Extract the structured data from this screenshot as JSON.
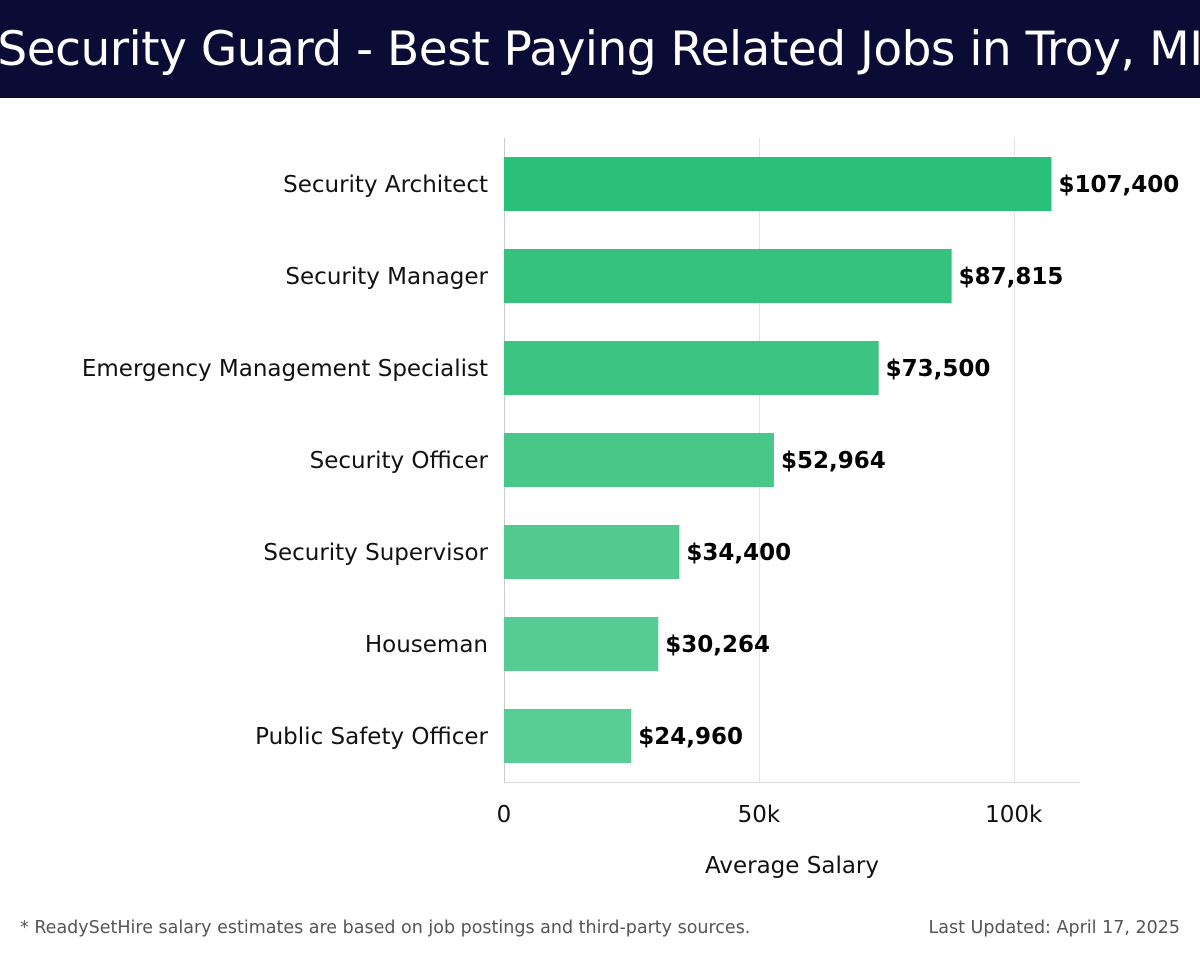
{
  "header": {
    "title": "Security Guard - Best Paying Related Jobs in Troy, MI"
  },
  "chart_data": {
    "type": "bar",
    "orientation": "horizontal",
    "title": "Security Guard - Best Paying Related Jobs in Troy, MI",
    "categories": [
      "Security Architect",
      "Security Manager",
      "Emergency Management Specialist",
      "Security Officer",
      "Security Supervisor",
      "Houseman",
      "Public Safety Officer"
    ],
    "values": [
      107400,
      87815,
      73500,
      52964,
      34400,
      30264,
      24960
    ],
    "value_labels": [
      "$107,400",
      "$87,815",
      "$73,500",
      "$52,964",
      "$34,400",
      "$30,264",
      "$24,960"
    ],
    "xlabel": "Average Salary",
    "ylabel": "",
    "xlim": [
      0,
      113000
    ],
    "ticks": [
      0,
      50000,
      100000
    ],
    "tick_labels": [
      "0",
      "50k",
      "100k"
    ],
    "grid": true,
    "colors": [
      "#2bc078",
      "#34c27d",
      "#3bc482",
      "#48c789",
      "#52c98f",
      "#56cb93",
      "#58cc95"
    ]
  },
  "footer": {
    "note": "* ReadySetHire salary estimates are based on job postings and third-party sources.",
    "updated": "Last Updated: April 17, 2025"
  }
}
